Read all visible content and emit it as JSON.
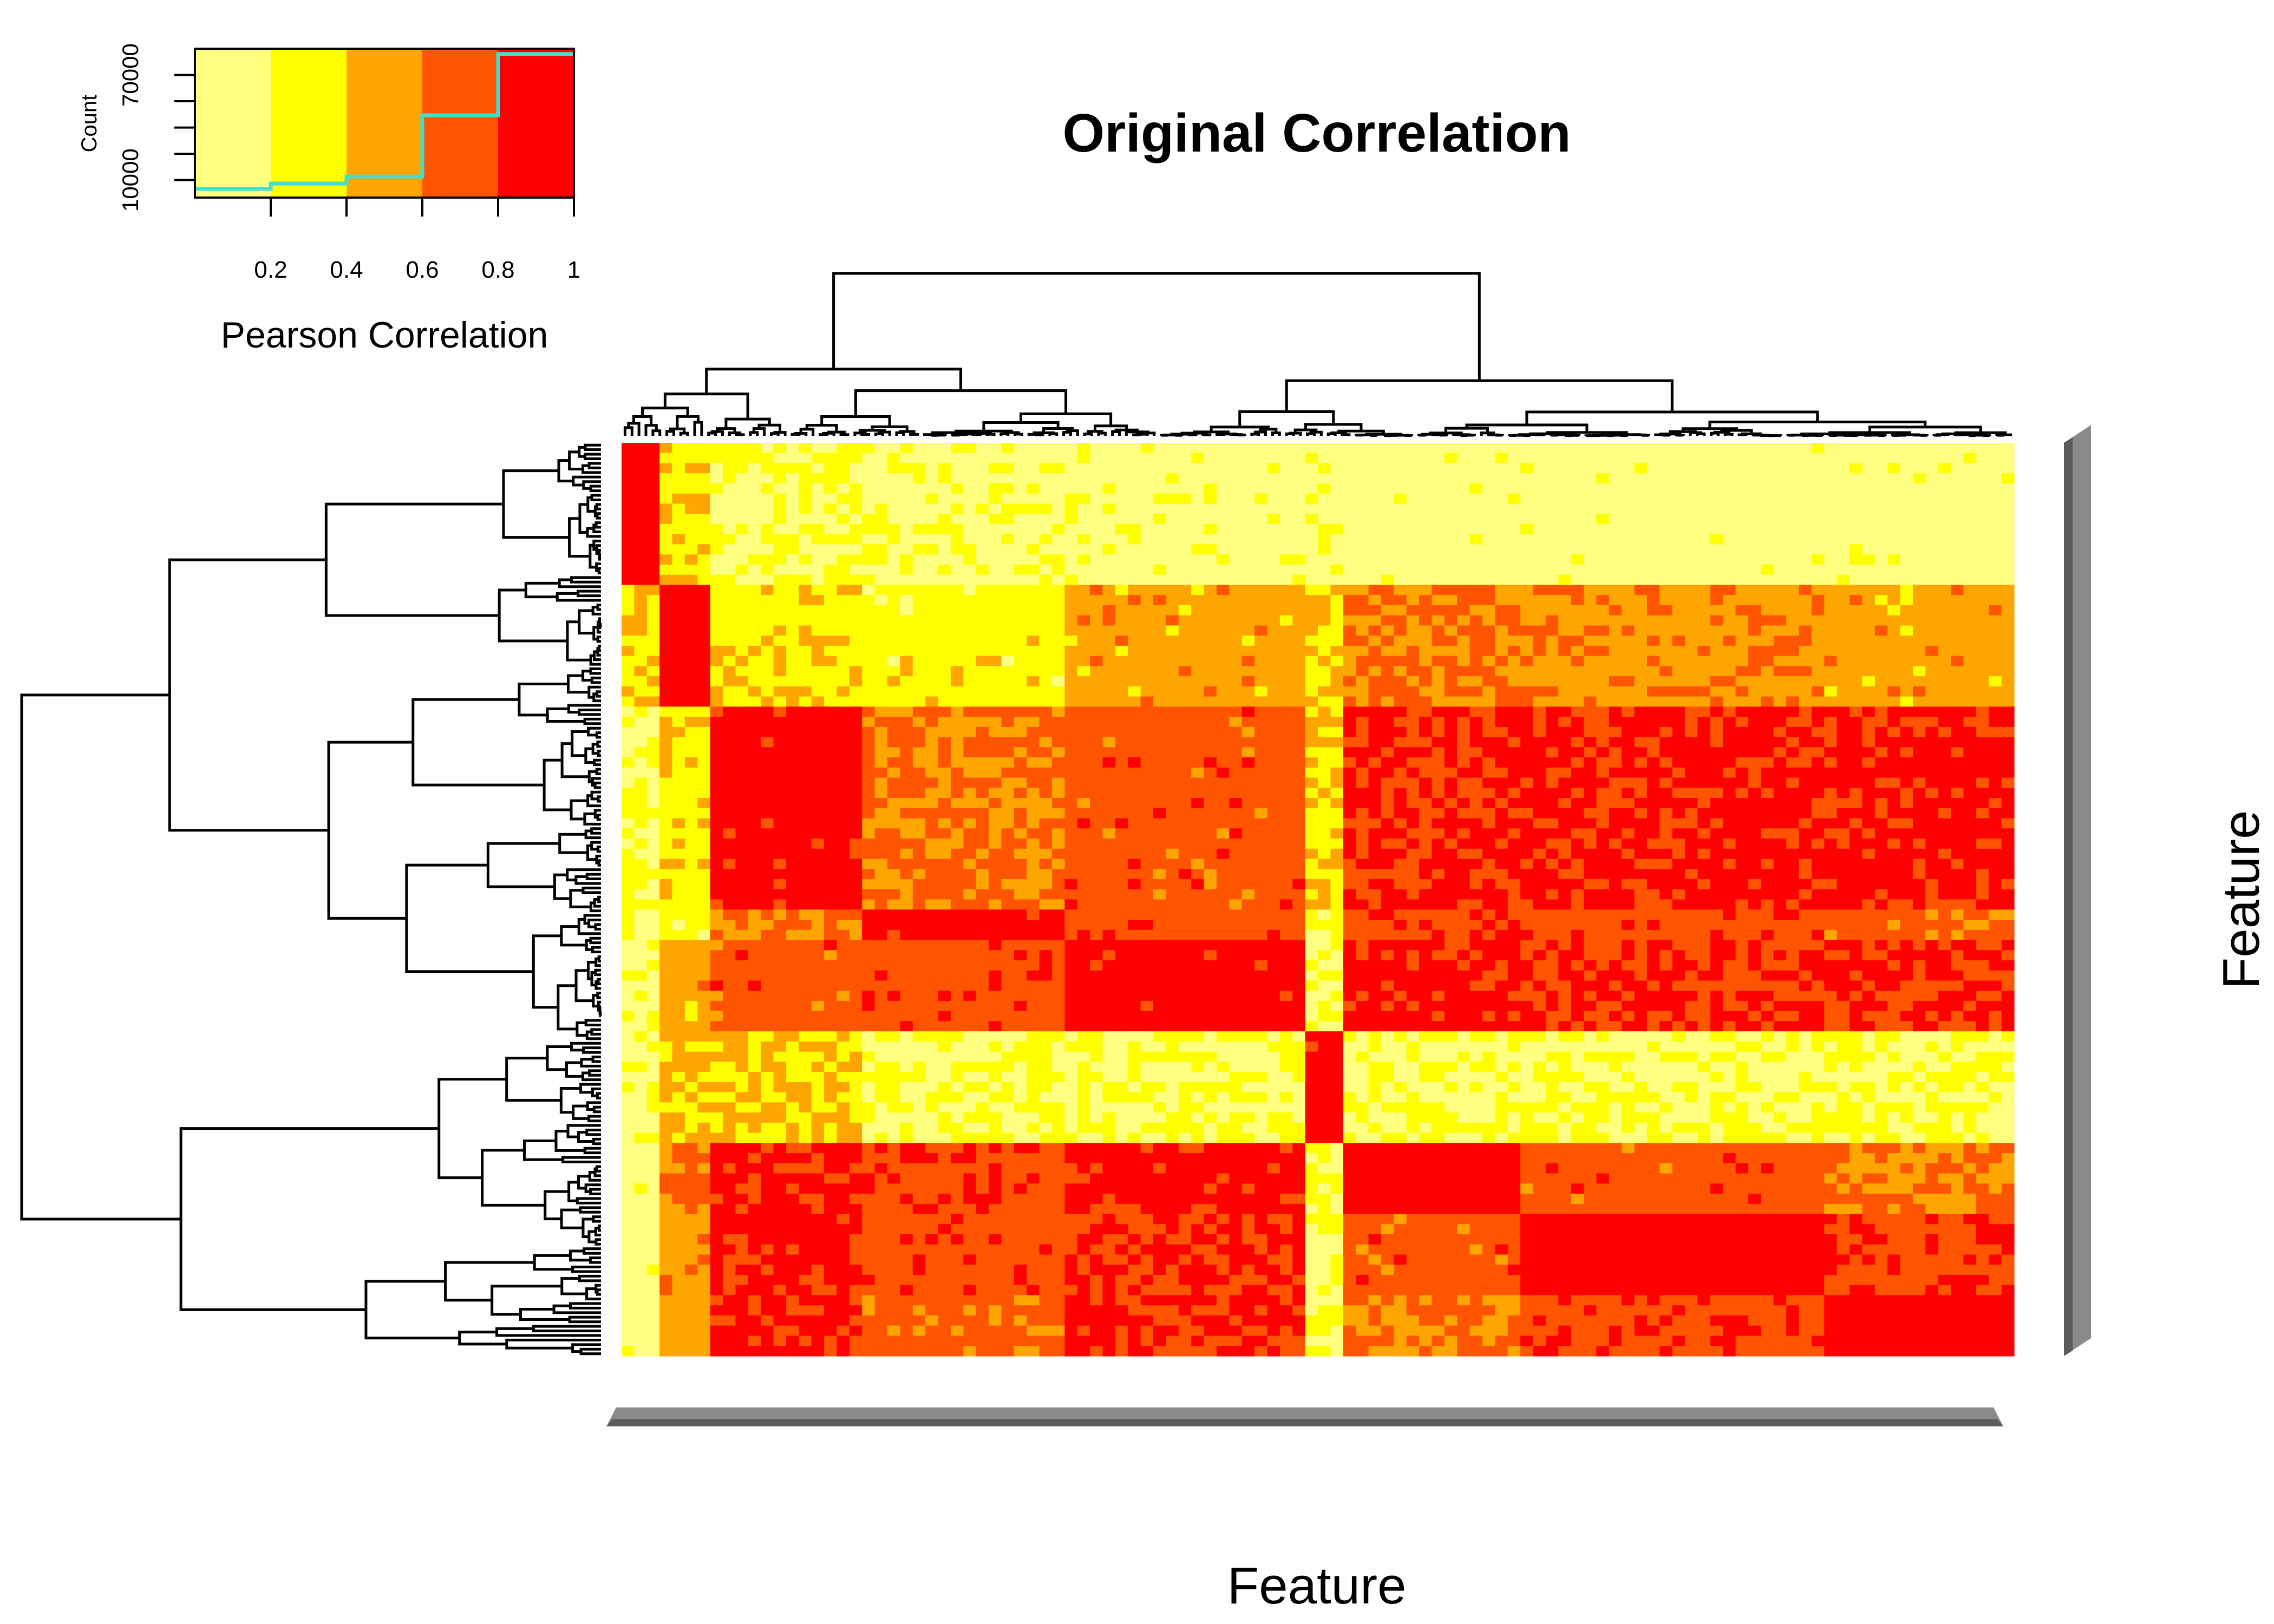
{
  "chart_data": {
    "type": "heatmap",
    "title": "Original Correlation",
    "xlabel": "Feature",
    "ylabel": "Feature",
    "row_labels_legible": false,
    "col_labels_legible": false,
    "dendrograms": {
      "rows": true,
      "columns": true
    },
    "color_key": {
      "xlabel": "Pearson Correlation",
      "ylabel": "Count",
      "x_tick_labels": [
        "0.2",
        "0.4",
        "0.6",
        "0.8",
        "1"
      ],
      "x_ticks": [
        0.2,
        0.4,
        0.6,
        0.8,
        1.0
      ],
      "y_tick_labels": [
        "10000",
        "70000"
      ],
      "y_ticks": [
        10000,
        70000
      ],
      "xlim": [
        0,
        1
      ],
      "ylim": [
        0,
        85000
      ],
      "bins": [
        {
          "from": 0.0,
          "to": 0.2,
          "color": "#FFFF80",
          "count": 5000
        },
        {
          "from": 0.2,
          "to": 0.4,
          "color": "#FFFF00",
          "count": 8000
        },
        {
          "from": 0.4,
          "to": 0.6,
          "color": "#FFA500",
          "count": 12000
        },
        {
          "from": 0.6,
          "to": 0.8,
          "color": "#FF5500",
          "count": 47000
        },
        {
          "from": 0.8,
          "to": 1.0,
          "color": "#FF0000",
          "count": 82000
        }
      ],
      "histogram_line_color": "#40E0D0"
    },
    "column_clusters_widths": [
      0.03,
      0.035,
      0.11,
      0.14,
      0.18,
      0.02,
      0.135,
      0.21,
      0.14
    ],
    "row_clusters_heights": [
      0.16,
      0.13,
      0.22,
      0.03,
      0.105,
      0.12,
      0.085,
      0.085,
      0.07
    ],
    "cluster_correlation_matrix": [
      [
        0.95,
        0.35,
        0.2,
        0.15,
        0.12,
        0.15,
        0.1,
        0.1,
        0.1
      ],
      [
        0.35,
        0.92,
        0.35,
        0.3,
        0.5,
        0.4,
        0.6,
        0.55,
        0.5
      ],
      [
        0.2,
        0.35,
        0.9,
        0.62,
        0.7,
        0.4,
        0.82,
        0.85,
        0.85
      ],
      [
        0.15,
        0.3,
        0.62,
        0.9,
        0.72,
        0.2,
        0.75,
        0.72,
        0.65
      ],
      [
        0.12,
        0.5,
        0.7,
        0.72,
        0.9,
        0.2,
        0.88,
        0.8,
        0.82
      ],
      [
        0.15,
        0.4,
        0.4,
        0.2,
        0.2,
        0.9,
        0.2,
        0.2,
        0.2
      ],
      [
        0.1,
        0.6,
        0.82,
        0.75,
        0.88,
        0.2,
        0.92,
        0.7,
        0.6
      ],
      [
        0.1,
        0.55,
        0.85,
        0.72,
        0.8,
        0.2,
        0.7,
        0.95,
        0.75
      ],
      [
        0.1,
        0.5,
        0.85,
        0.65,
        0.82,
        0.2,
        0.6,
        0.75,
        0.95
      ]
    ]
  }
}
